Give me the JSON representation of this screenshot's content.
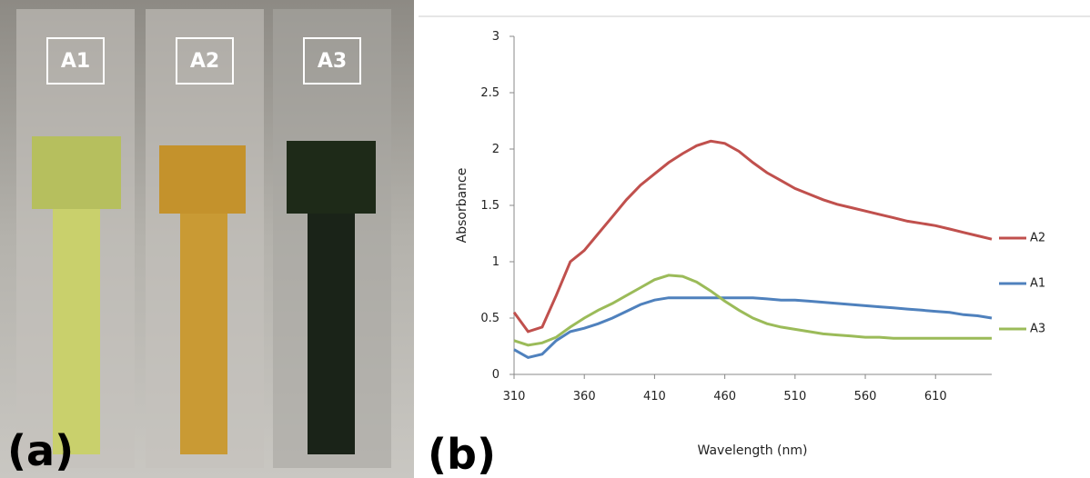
{
  "photo": {
    "labels": [
      "A1",
      "A2",
      "A3"
    ],
    "panel_label": "(a)"
  },
  "chart_data": {
    "type": "line",
    "panel_label": "(b)",
    "x_label": "Wavelength (nm)",
    "y_label": "Absorbance",
    "x": [
      310,
      320,
      330,
      340,
      350,
      360,
      370,
      380,
      390,
      400,
      410,
      420,
      430,
      440,
      450,
      460,
      470,
      480,
      490,
      500,
      510,
      520,
      530,
      540,
      550,
      560,
      570,
      580,
      590,
      600,
      610,
      620,
      630,
      640,
      650
    ],
    "series": [
      {
        "name": "A2",
        "color": "#c0504d",
        "values": [
          0.55,
          0.38,
          0.42,
          0.7,
          1.0,
          1.1,
          1.25,
          1.4,
          1.55,
          1.68,
          1.78,
          1.88,
          1.96,
          2.03,
          2.07,
          2.05,
          1.98,
          1.88,
          1.79,
          1.72,
          1.65,
          1.6,
          1.55,
          1.51,
          1.48,
          1.45,
          1.42,
          1.39,
          1.36,
          1.34,
          1.32,
          1.29,
          1.26,
          1.23,
          1.2
        ]
      },
      {
        "name": "A1",
        "color": "#4f81bd",
        "values": [
          0.22,
          0.15,
          0.18,
          0.3,
          0.38,
          0.41,
          0.45,
          0.5,
          0.56,
          0.62,
          0.66,
          0.68,
          0.68,
          0.68,
          0.68,
          0.68,
          0.68,
          0.68,
          0.67,
          0.66,
          0.66,
          0.65,
          0.64,
          0.63,
          0.62,
          0.61,
          0.6,
          0.59,
          0.58,
          0.57,
          0.56,
          0.55,
          0.53,
          0.52,
          0.5
        ]
      },
      {
        "name": "A3",
        "color": "#9bbb59",
        "values": [
          0.3,
          0.26,
          0.28,
          0.33,
          0.42,
          0.5,
          0.57,
          0.63,
          0.7,
          0.77,
          0.84,
          0.88,
          0.87,
          0.82,
          0.74,
          0.65,
          0.57,
          0.5,
          0.45,
          0.42,
          0.4,
          0.38,
          0.36,
          0.35,
          0.34,
          0.33,
          0.33,
          0.32,
          0.32,
          0.32,
          0.32,
          0.32,
          0.32,
          0.32,
          0.32
        ]
      }
    ],
    "xlim": [
      310,
      650
    ],
    "ylim": [
      0,
      3
    ],
    "xticks": [
      310,
      360,
      410,
      460,
      510,
      560,
      610
    ],
    "yticks": [
      0,
      0.5,
      1,
      1.5,
      2,
      2.5,
      3
    ],
    "grid": false,
    "legend": "right"
  }
}
